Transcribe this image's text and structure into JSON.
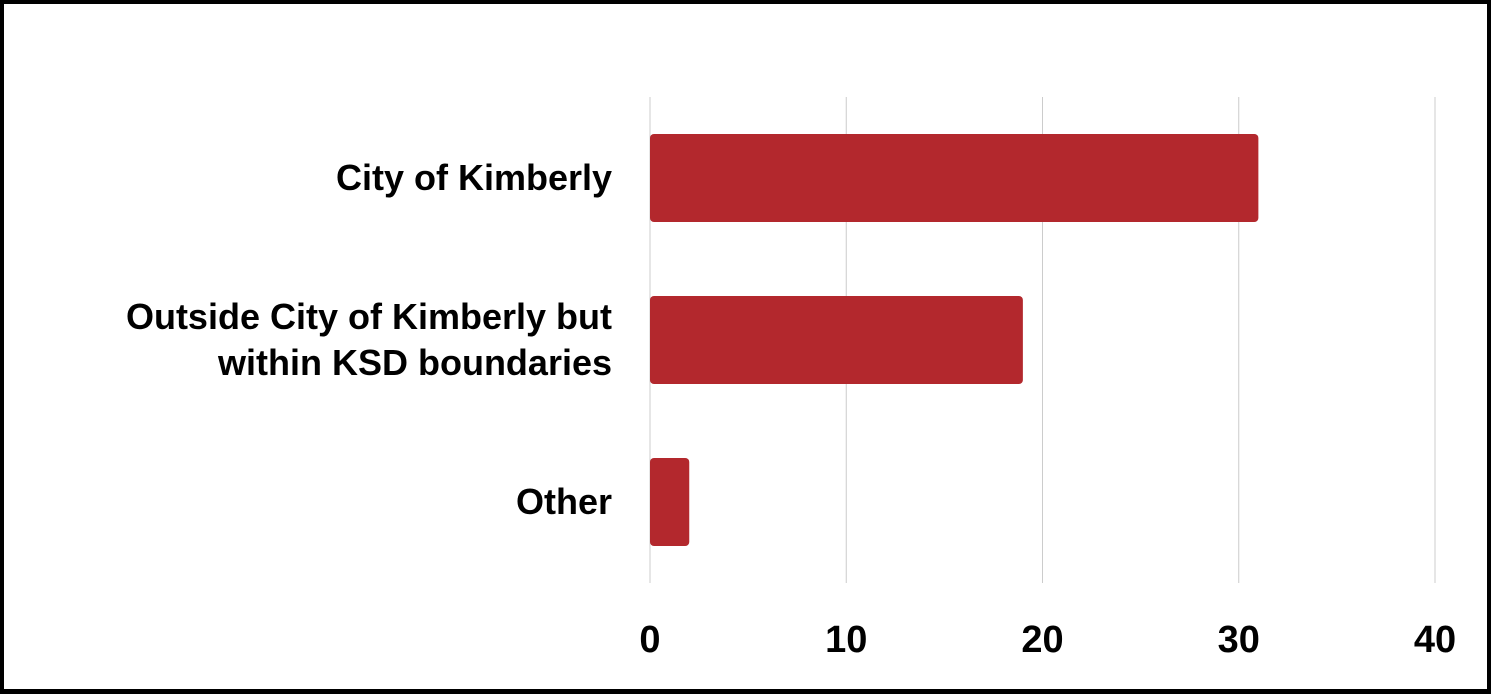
{
  "chart_data": {
    "type": "bar",
    "orientation": "horizontal",
    "categories": [
      "City of Kimberly",
      "Outside City of Kimberly but within KSD boundaries",
      "Other"
    ],
    "values": [
      31,
      19,
      2
    ],
    "color": "#b3282d",
    "xlim": [
      0,
      40
    ],
    "xticks": [
      0,
      10,
      20,
      30,
      40
    ],
    "grid": true
  }
}
